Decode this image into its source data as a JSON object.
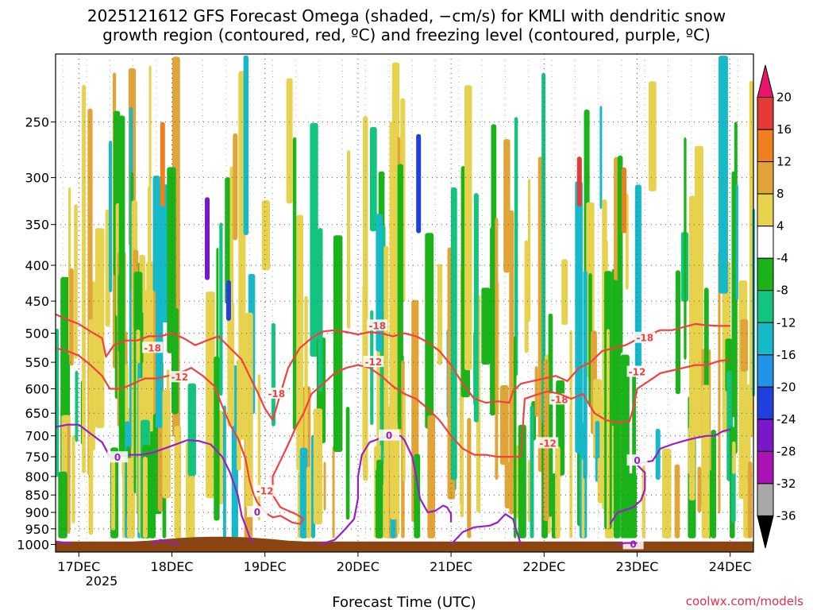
{
  "chart_data": {
    "type": "heatmap",
    "title_line1": "2025121612 GFS Forecast Omega (shaded, −cm/s) for KMLI with dendritic snow",
    "title_line2": "growth region (contoured, red, ºC) and freezing level (contoured, purple, ºC)",
    "xlabel": "Forecast Time (UTC)",
    "credit": "coolwx.com/models",
    "x_ticks": [
      {
        "label": "17DEC",
        "hour": 24
      },
      {
        "label": "18DEC",
        "hour": 48
      },
      {
        "label": "19DEC",
        "hour": 72
      },
      {
        "label": "20DEC",
        "hour": 96
      },
      {
        "label": "21DEC",
        "hour": 120
      },
      {
        "label": "22DEC",
        "hour": 144
      },
      {
        "label": "23DEC",
        "hour": 168
      },
      {
        "label": "24DEC",
        "hour": 192
      }
    ],
    "x_year_label": "2025",
    "xlim_hours": [
      18,
      198
    ],
    "y_ticks": [
      250,
      300,
      350,
      400,
      450,
      500,
      550,
      600,
      650,
      700,
      750,
      800,
      850,
      900,
      950,
      1000
    ],
    "ylim_hPa": [
      200,
      1025
    ],
    "y_scale": "log",
    "grid": true,
    "colorbar": {
      "levels": [
        20,
        16,
        12,
        8,
        4,
        -4,
        -8,
        -12,
        -16,
        -20,
        -24,
        -28,
        -32,
        -36
      ],
      "colors": [
        "#e8146e",
        "#e63a3a",
        "#ee7f1e",
        "#e0a536",
        "#e6d24c",
        "#ffffff",
        "#1ab41a",
        "#13c480",
        "#16b9c8",
        "#2094e6",
        "#2040dc",
        "#7a18c8",
        "#aa14b4",
        "#a8a8a8",
        "#000000"
      ]
    },
    "dendritic_contours": [
      {
        "label": "-18",
        "color": "#f04040",
        "points": [
          [
            18,
            470
          ],
          [
            21,
            478
          ],
          [
            24,
            485
          ],
          [
            27,
            497
          ],
          [
            30,
            508
          ],
          [
            31,
            540
          ],
          [
            33,
            520
          ],
          [
            36,
            512
          ],
          [
            39,
            512
          ],
          [
            42,
            505
          ],
          [
            45,
            505
          ],
          [
            48,
            500
          ],
          [
            51,
            508
          ],
          [
            54,
            520
          ],
          [
            57,
            512
          ],
          [
            60,
            505
          ],
          [
            63,
            525
          ],
          [
            66,
            545
          ],
          [
            68,
            575
          ],
          [
            70,
            605
          ],
          [
            72,
            640
          ],
          [
            74,
            665
          ],
          [
            76,
            610
          ],
          [
            78,
            560
          ],
          [
            81,
            525
          ],
          [
            84,
            508
          ],
          [
            87,
            497
          ],
          [
            90,
            495
          ],
          [
            93,
            498
          ],
          [
            96,
            502
          ],
          [
            99,
            498
          ],
          [
            102,
            500
          ],
          [
            105,
            505
          ],
          [
            108,
            500
          ],
          [
            111,
            505
          ],
          [
            114,
            515
          ],
          [
            117,
            530
          ],
          [
            120,
            555
          ],
          [
            123,
            590
          ],
          [
            126,
            620
          ],
          [
            129,
            628
          ],
          [
            132,
            625
          ],
          [
            135,
            628
          ],
          [
            136,
            605
          ],
          [
            138,
            590
          ],
          [
            141,
            585
          ],
          [
            144,
            580
          ],
          [
            147,
            575
          ],
          [
            150,
            585
          ],
          [
            153,
            560
          ],
          [
            156,
            550
          ],
          [
            159,
            530
          ],
          [
            162,
            525
          ],
          [
            165,
            520
          ],
          [
            168,
            510
          ],
          [
            171,
            502
          ],
          [
            174,
            495
          ],
          [
            177,
            495
          ],
          [
            180,
            490
          ],
          [
            183,
            485
          ],
          [
            186,
            487
          ],
          [
            189,
            488
          ],
          [
            192,
            488
          ]
        ],
        "label_hours": [
          [
            43,
            525
          ],
          [
            101,
            488
          ],
          [
            148,
            622
          ],
          [
            170,
            508
          ],
          [
            75,
            610
          ]
        ]
      },
      {
        "label": "-12",
        "color": "#f04040",
        "points": [
          [
            18,
            525
          ],
          [
            21,
            530
          ],
          [
            24,
            538
          ],
          [
            27,
            555
          ],
          [
            30,
            575
          ],
          [
            32,
            600
          ],
          [
            35,
            600
          ],
          [
            38,
            590
          ],
          [
            41,
            580
          ],
          [
            44,
            580
          ],
          [
            47,
            575
          ],
          [
            50,
            570
          ],
          [
            53,
            560
          ],
          [
            56,
            575
          ],
          [
            59,
            595
          ],
          [
            61,
            635
          ],
          [
            63,
            675
          ],
          [
            65,
            705
          ],
          [
            67,
            755
          ],
          [
            68,
            810
          ],
          [
            69,
            845
          ],
          [
            70,
            870
          ],
          [
            72,
            900
          ],
          [
            74,
            915
          ],
          [
            76,
            910
          ],
          [
            79,
            930
          ],
          [
            81,
            935
          ],
          [
            82,
            920
          ],
          [
            80,
            905
          ],
          [
            78,
            895
          ],
          [
            76,
            885
          ],
          [
            74,
            850
          ],
          [
            74,
            800
          ],
          [
            76,
            760
          ],
          [
            78,
            720
          ],
          [
            80,
            680
          ],
          [
            82,
            650
          ],
          [
            84,
            610
          ],
          [
            87,
            590
          ],
          [
            90,
            570
          ],
          [
            93,
            560
          ],
          [
            96,
            555
          ],
          [
            99,
            560
          ],
          [
            102,
            575
          ],
          [
            105,
            595
          ],
          [
            108,
            610
          ],
          [
            111,
            620
          ],
          [
            114,
            640
          ],
          [
            117,
            665
          ],
          [
            120,
            700
          ],
          [
            123,
            730
          ],
          [
            126,
            745
          ],
          [
            129,
            745
          ],
          [
            132,
            750
          ],
          [
            135,
            750
          ],
          [
            138,
            750
          ],
          [
            139,
            620
          ],
          [
            142,
            612
          ],
          [
            145,
            605
          ],
          [
            148,
            610
          ],
          [
            151,
            620
          ],
          [
            154,
            610
          ],
          [
            157,
            650
          ],
          [
            160,
            665
          ],
          [
            163,
            670
          ],
          [
            166,
            668
          ],
          [
            167,
            640
          ],
          [
            168,
            600
          ],
          [
            171,
            585
          ],
          [
            174,
            570
          ],
          [
            177,
            565
          ],
          [
            180,
            560
          ],
          [
            183,
            555
          ],
          [
            186,
            555
          ],
          [
            189,
            548
          ],
          [
            192,
            545
          ]
        ],
        "label_hours": [
          [
            50,
            578
          ],
          [
            100,
            550
          ],
          [
            145,
            718
          ],
          [
            168,
            568
          ],
          [
            72,
            840
          ]
        ]
      }
    ],
    "freezing_contours": [
      {
        "label": "0",
        "color": "#9a1ec8",
        "points": [
          [
            18,
            680
          ],
          [
            21,
            675
          ],
          [
            24,
            675
          ],
          [
            27,
            695
          ],
          [
            30,
            715
          ],
          [
            32,
            750
          ],
          [
            34,
            750
          ],
          [
            37,
            745
          ],
          [
            40,
            745
          ],
          [
            43,
            740
          ],
          [
            46,
            730
          ],
          [
            49,
            720
          ],
          [
            52,
            710
          ],
          [
            55,
            712
          ],
          [
            58,
            720
          ],
          [
            61,
            750
          ],
          [
            63,
            790
          ],
          [
            65,
            850
          ],
          [
            66,
            910
          ],
          [
            67,
            940
          ],
          [
            68,
            975
          ],
          [
            69,
            995
          ]
        ],
        "label_hours": [
          [
            34,
            752
          ],
          [
            70,
            900
          ]
        ]
      },
      {
        "label": "0",
        "color": "#9a1ec8",
        "points": [
          [
            86,
            1000
          ],
          [
            90,
            985
          ],
          [
            92,
            960
          ],
          [
            95,
            920
          ],
          [
            96,
            860
          ],
          [
            96,
            800
          ],
          [
            97,
            745
          ],
          [
            99,
            715
          ],
          [
            102,
            705
          ],
          [
            105,
            700
          ],
          [
            107,
            700
          ],
          [
            108,
            710
          ],
          [
            110,
            750
          ],
          [
            111,
            800
          ],
          [
            112,
            860
          ],
          [
            114,
            900
          ],
          [
            116,
            895
          ],
          [
            118,
            880
          ],
          [
            119,
            885
          ],
          [
            120,
            905
          ],
          [
            120,
            930
          ]
        ],
        "label_hours": [
          [
            104,
            700
          ]
        ]
      },
      {
        "label": "0",
        "color": "#9a1ec8",
        "points": [
          [
            120,
            1000
          ],
          [
            123,
            960
          ],
          [
            126,
            945
          ],
          [
            130,
            940
          ],
          [
            132,
            930
          ],
          [
            134,
            905
          ],
          [
            136,
            920
          ],
          [
            137,
            960
          ],
          [
            138,
            1000
          ]
        ],
        "label_hours": []
      },
      {
        "label": "0",
        "color": "#9a1ec8",
        "points": [
          [
            161,
            935
          ],
          [
            163,
            900
          ],
          [
            167,
            885
          ],
          [
            169,
            865
          ],
          [
            170,
            835
          ],
          [
            170,
            790
          ],
          [
            168,
            770
          ],
          [
            169,
            765
          ],
          [
            172,
            760
          ],
          [
            174,
            730
          ],
          [
            177,
            720
          ],
          [
            180,
            712
          ],
          [
            183,
            705
          ],
          [
            186,
            700
          ],
          [
            188,
            700
          ],
          [
            190,
            690
          ],
          [
            192,
            685
          ]
        ],
        "label_hours": [
          [
            168,
            760
          ],
          [
            167,
            1000
          ]
        ]
      },
      {
        "label": "0",
        "color": "#9a1ec8",
        "points": [
          [
            18,
            990
          ],
          [
            21,
            995
          ],
          [
            22,
            1000
          ]
        ],
        "label_hours": []
      },
      {
        "label": "0",
        "color": "#9a1ec8",
        "points": [
          [
            43,
            1000
          ],
          [
            45,
            985
          ],
          [
            48,
            995
          ],
          [
            50,
            1000
          ]
        ],
        "label_hours": []
      },
      {
        "label": "0",
        "color": "#9a1ec8",
        "points": [
          [
            163,
            1000
          ],
          [
            165,
            995
          ],
          [
            168,
            995
          ]
        ],
        "label_hours": []
      }
    ],
    "terrain_color": "#8b4513",
    "surface_pressure_hPa": 990
  }
}
